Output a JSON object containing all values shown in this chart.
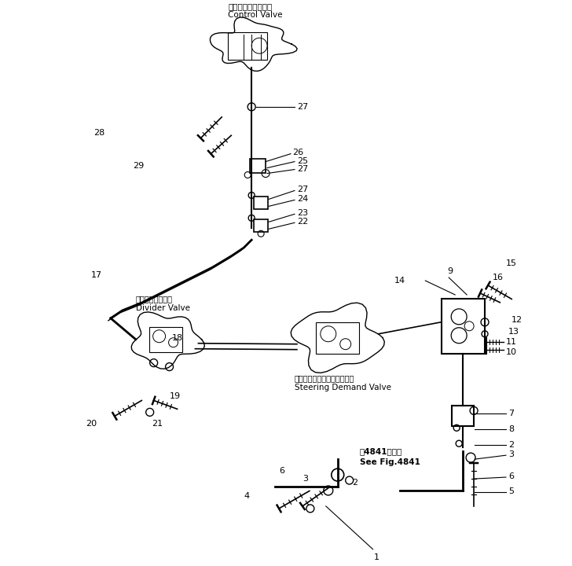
{
  "bg_color": "#ffffff",
  "line_color": "#000000",
  "fig_width": 7.28,
  "fig_height": 7.2,
  "dpi": 100,
  "title_jp": "コントロールバルブ",
  "title_en": "Control Valve",
  "divider_jp": "ディバイダバルブ",
  "divider_en": "Divider Valve",
  "steering_jp": "ステアリングデマンドバルブ",
  "steering_en": "Steering Demand Valve",
  "see_fig_jp": "第4841図参照",
  "see_fig_en": "See Fig.4841"
}
